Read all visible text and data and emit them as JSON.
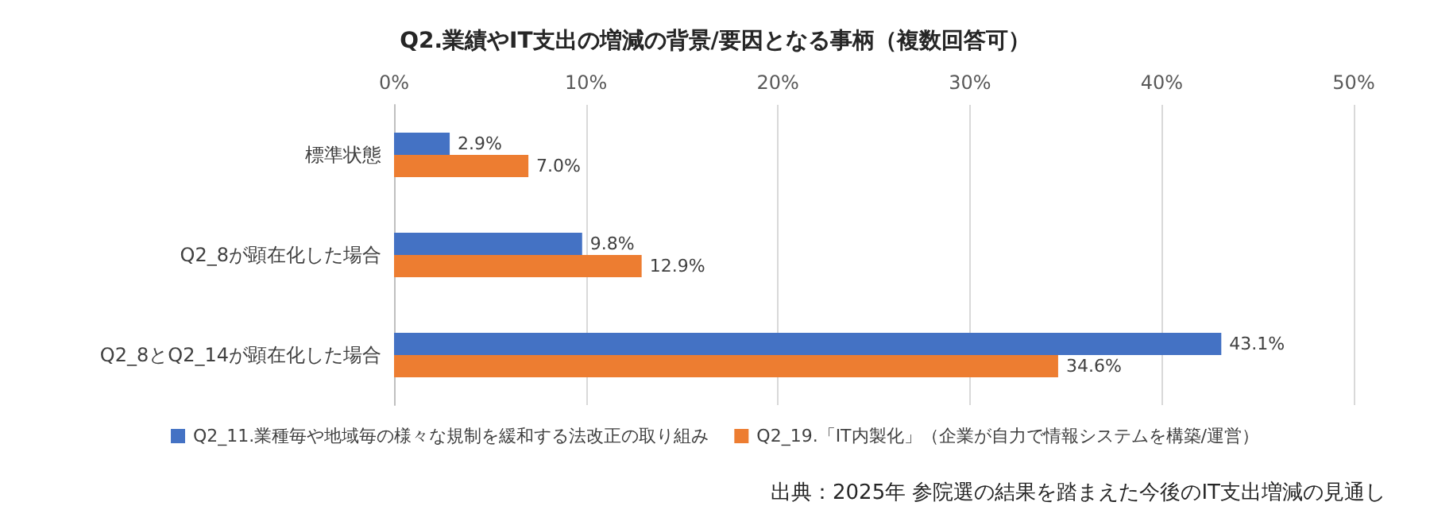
{
  "chart_data": {
    "type": "bar",
    "orientation": "horizontal",
    "title": "Q2.業績やIT支出の増減の背景/要因となる事柄（複数回答可）",
    "categories": [
      "標準状態",
      "Q2_8が顕在化した場合",
      "Q2_8とQ2_14が顕在化した場合"
    ],
    "series": [
      {
        "name": "Q2_11.業種毎や地域毎の様々な規制を緩和する法改正の取り組み",
        "color": "#4472c4",
        "values": [
          2.9,
          9.8,
          43.1
        ],
        "value_labels": [
          "2.9%",
          "9.8%",
          "43.1%"
        ]
      },
      {
        "name": "Q2_19.「IT内製化」（企業が自力で情報システムを構築/運営）",
        "color": "#ed7d31",
        "values": [
          7.0,
          12.9,
          34.6
        ],
        "value_labels": [
          "7.0%",
          "12.9%",
          "34.6%"
        ]
      }
    ],
    "xlim": [
      0,
      50
    ],
    "xticks": [
      {
        "value": 0,
        "label": "0%"
      },
      {
        "value": 10,
        "label": "10%"
      },
      {
        "value": 20,
        "label": "20%"
      },
      {
        "value": 30,
        "label": "30%"
      },
      {
        "value": 40,
        "label": "40%"
      },
      {
        "value": 50,
        "label": "50%"
      }
    ],
    "grid": "x",
    "legend": "bottom",
    "annotations": [
      "出典：2025年 参院選の結果を踏まえた今後のIT支出増減の見通し"
    ]
  }
}
